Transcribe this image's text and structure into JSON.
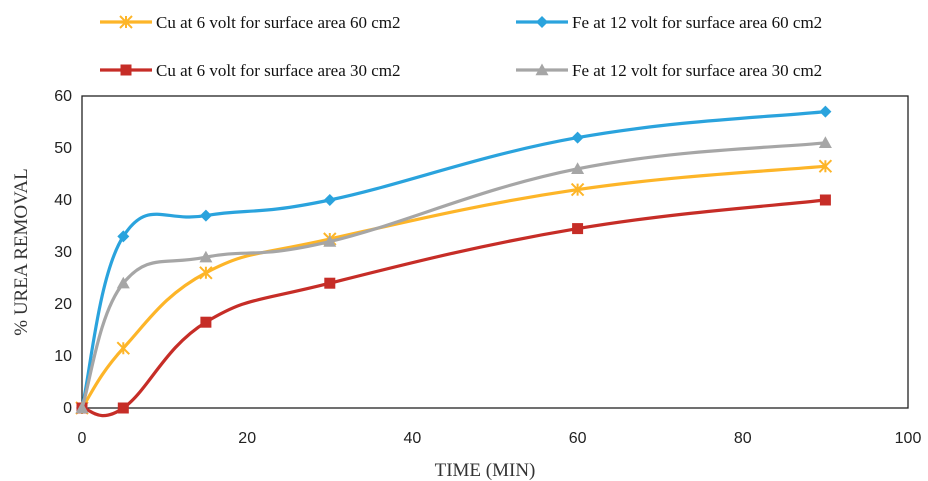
{
  "chart_data": {
    "type": "line",
    "title": "",
    "xlabel": "TIME (MIN)",
    "ylabel": "% UREA REMOVAL",
    "xlim": [
      0,
      100
    ],
    "ylim": [
      0,
      60
    ],
    "xticks": [
      0,
      20,
      40,
      60,
      80,
      100
    ],
    "yticks": [
      0,
      10,
      20,
      30,
      40,
      50,
      60
    ],
    "grid": false,
    "legend_position": "top",
    "series": [
      {
        "name": "Cu at 6 volt for surface area 60 cm2",
        "marker": "asterisk",
        "color": "#FDB528",
        "x": [
          0,
          5,
          15,
          30,
          60,
          90
        ],
        "y": [
          0,
          11.5,
          26,
          32.5,
          42,
          46.5
        ]
      },
      {
        "name": "Fe at 12 volt for surface area 60 cm2",
        "marker": "diamond",
        "color": "#2AA3DD",
        "x": [
          0,
          5,
          15,
          30,
          60,
          90
        ],
        "y": [
          0,
          33,
          37,
          40,
          52,
          57
        ]
      },
      {
        "name": "Cu at 6 volt for surface area 30 cm2",
        "marker": "square",
        "color": "#C62D27",
        "x": [
          0,
          5,
          15,
          30,
          60,
          90
        ],
        "y": [
          0,
          0,
          16.5,
          24,
          34.5,
          40
        ]
      },
      {
        "name": "Fe at 12 volt for surface area 30 cm2",
        "marker": "triangle",
        "color": "#A6A6A6",
        "x": [
          0,
          5,
          15,
          30,
          60,
          90
        ],
        "y": [
          0,
          24,
          29,
          32,
          46,
          51
        ]
      }
    ]
  }
}
